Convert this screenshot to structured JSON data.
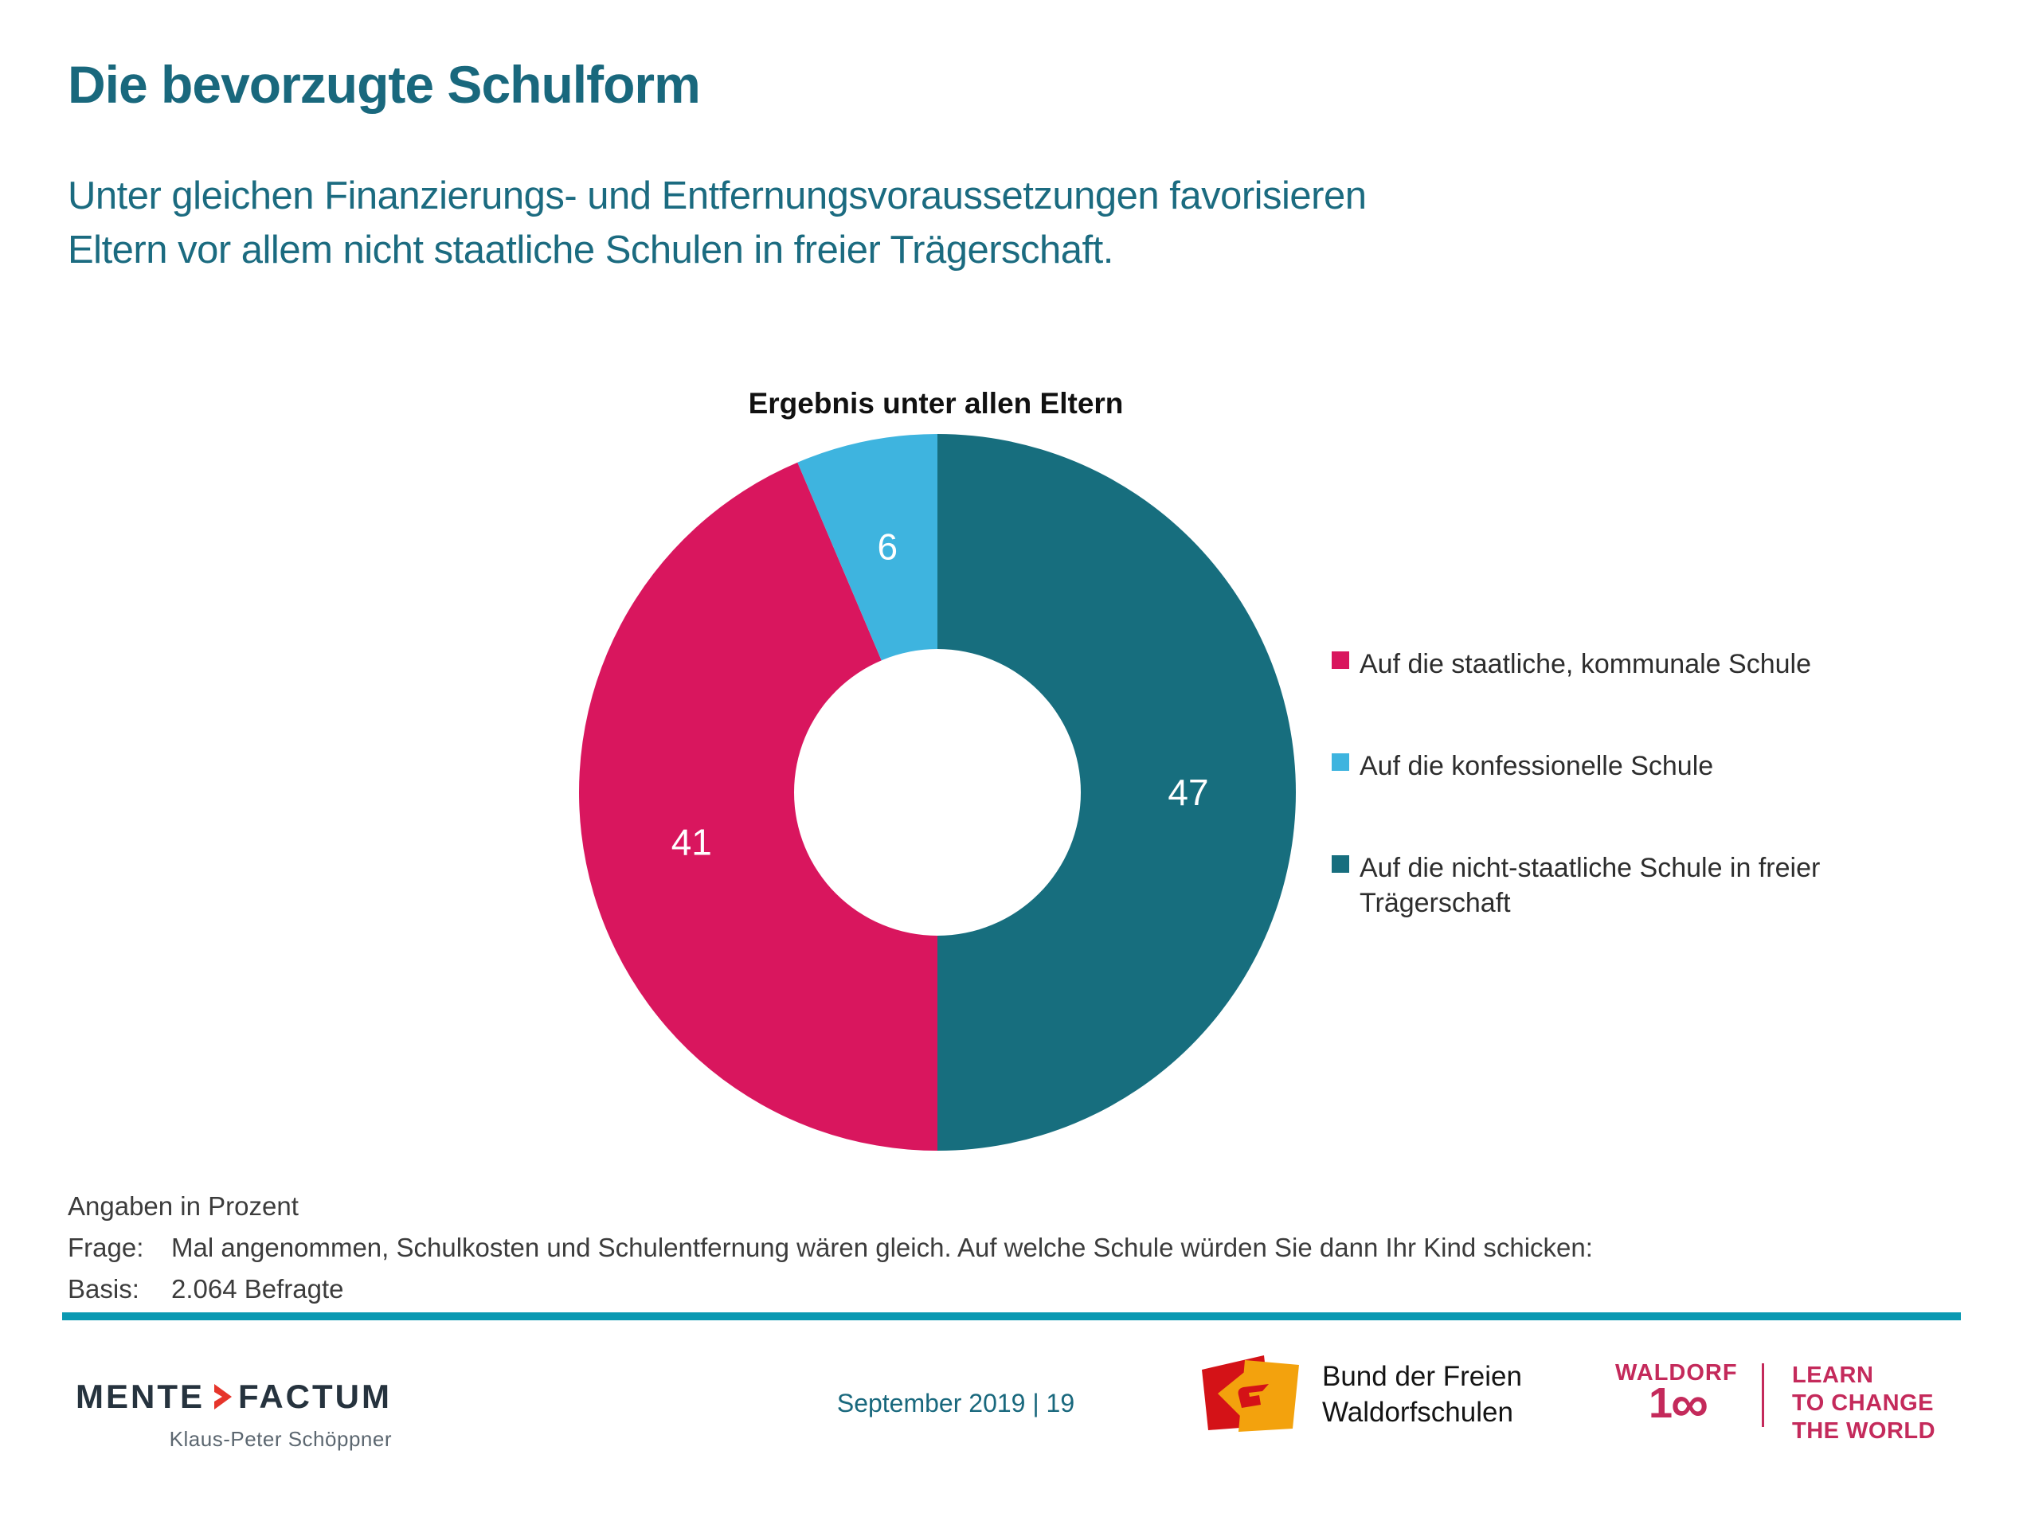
{
  "slide": {
    "title": "Die bevorzugte Schulform",
    "subtitle_line1": "Unter gleichen Finanzierungs- und Entfernungsvoraussetzungen favorisieren",
    "subtitle_line2": "Eltern vor allem nicht staatliche Schulen in freier Trägerschaft.",
    "accent_color": "#19687d"
  },
  "chart_data": {
    "type": "pie",
    "title": "Ergebnis unter allen Eltern",
    "unit": "Prozent",
    "donut_hole_ratio": 0.4,
    "start_angle_deg": 0,
    "direction": "clockwise",
    "legend_position": "right",
    "segments": [
      {
        "label": "Auf die nicht-staatliche Schule in freier Trägerschaft",
        "value": 47,
        "color": "#176e7e",
        "label_color": "#ffffff"
      },
      {
        "label": "Auf die staatliche, kommunale Schule",
        "value": 41,
        "color": "#d9165e",
        "label_color": "#ffffff"
      },
      {
        "label": "Auf die konfessionelle Schule",
        "value": 6,
        "color": "#3eb4df",
        "label_color": "#ffffff"
      }
    ]
  },
  "notes": {
    "unit": "Angaben in Prozent",
    "question_label": "Frage:",
    "question": "Mal angenommen, Schulkosten und Schulentfernung wären gleich. Auf welche Schule würden Sie dann Ihr Kind schicken:",
    "basis_label": "Basis:",
    "basis": "2.064 Befragte"
  },
  "footer": {
    "divider_color": "#0a99b2",
    "mentefactum": {
      "word1": "MENTE",
      "word2": "FACTUM",
      "subtitle": "Klaus-Peter Schöppner"
    },
    "date_page": "September 2019 | 19",
    "bdfw": {
      "line1": "Bund der Freien",
      "line2": "Waldorfschulen"
    },
    "waldorf100": {
      "brand": "WALDORF",
      "number_prefix": "1",
      "infinity": "∞",
      "claim_line1": "LEARN",
      "claim_line2": "TO CHANGE",
      "claim_line3": "THE WORLD"
    }
  }
}
